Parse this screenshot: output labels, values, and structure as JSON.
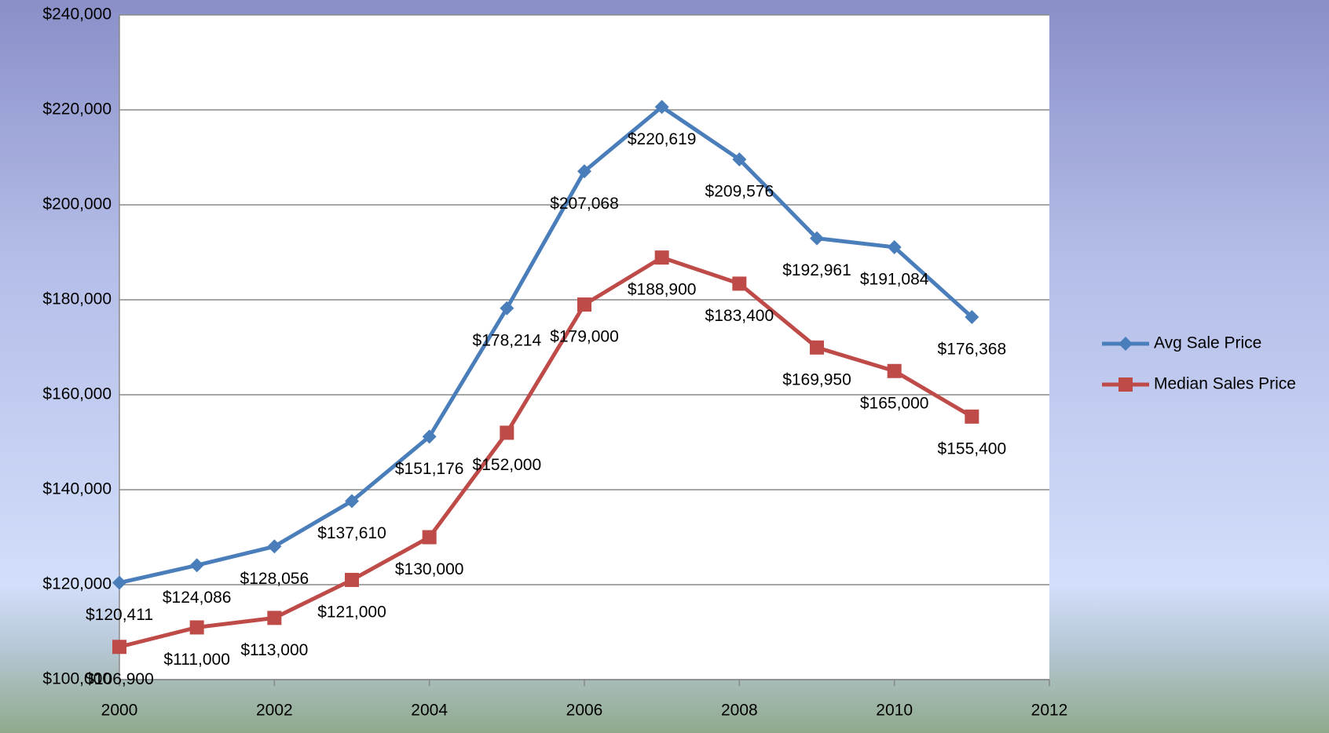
{
  "chart_data": {
    "type": "line",
    "x": [
      2000,
      2001,
      2002,
      2003,
      2004,
      2005,
      2006,
      2007,
      2008,
      2009,
      2010,
      2011
    ],
    "series": [
      {
        "name": "Avg Sale Price",
        "color": "#4a7ebb",
        "marker": "diamond",
        "values": [
          120411,
          124086,
          128056,
          137610,
          151176,
          178214,
          207068,
          220619,
          209576,
          192961,
          191084,
          176368
        ],
        "value_labels": [
          "$120,411",
          "$124,086",
          "$128,056",
          "$137,610",
          "$151,176",
          "$178,214",
          "$207,068",
          "$220,619",
          "$209,576",
          "$192,961",
          "$191,084",
          "$176,368"
        ]
      },
      {
        "name": "Median Sales Price",
        "color": "#be4b48",
        "marker": "square",
        "values": [
          106900,
          111000,
          113000,
          121000,
          130000,
          152000,
          179000,
          188900,
          183400,
          169950,
          165000,
          155400
        ],
        "value_labels": [
          "$106,900",
          "$111,000",
          "$113,000",
          "$121,000",
          "$130,000",
          "$152,000",
          "$179,000",
          "$188,900",
          "$183,400",
          "$169,950",
          "$165,000",
          "$155,400"
        ]
      }
    ],
    "xlim": [
      2000,
      2012
    ],
    "xticks": [
      2000,
      2002,
      2004,
      2006,
      2008,
      2010,
      2012
    ],
    "ylim": [
      100000,
      240000
    ],
    "yticks": [
      {
        "value": 100000,
        "label": "$100,000"
      },
      {
        "value": 120000,
        "label": "$120,000"
      },
      {
        "value": 140000,
        "label": "$140,000"
      },
      {
        "value": 160000,
        "label": "$160,000"
      },
      {
        "value": 180000,
        "label": "$180,000"
      },
      {
        "value": 200000,
        "label": "$200,000"
      },
      {
        "value": 220000,
        "label": "$220,000"
      },
      {
        "value": 240000,
        "label": "$240,000"
      }
    ],
    "grid": true,
    "legend": "right"
  }
}
